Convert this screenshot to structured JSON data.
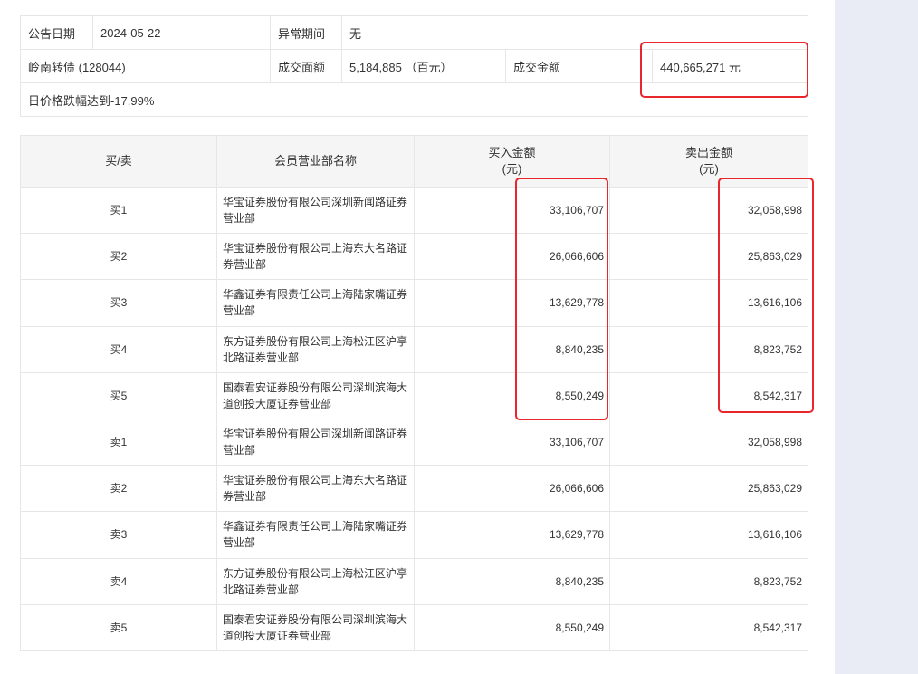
{
  "info": {
    "date_label": "公告日期",
    "date": "2024-05-22",
    "period_label": "异常期间",
    "period": "无",
    "bond": "岭南转债 (128044)",
    "face_label": "成交面额",
    "face": "5,184,885 （百元）",
    "amount_label": "成交金额",
    "amount": "440,665,271 元",
    "note": "日价格跌幅达到-17.99%"
  },
  "table": {
    "headers": [
      "买/卖",
      "会员营业部名称",
      "买入金额\n(元)",
      "卖出金额\n(元)"
    ],
    "rows": [
      {
        "side": "买1",
        "name": "华宝证券股份有限公司深圳新闻路证券营业部",
        "buy": "33,106,707",
        "sell": "32,058,998"
      },
      {
        "side": "买2",
        "name": "华宝证券股份有限公司上海东大名路证券营业部",
        "buy": "26,066,606",
        "sell": "25,863,029"
      },
      {
        "side": "买3",
        "name": "华鑫证券有限责任公司上海陆家嘴证券营业部",
        "buy": "13,629,778",
        "sell": "13,616,106"
      },
      {
        "side": "买4",
        "name": "东方证券股份有限公司上海松江区沪亭北路证券营业部",
        "buy": "8,840,235",
        "sell": "8,823,752"
      },
      {
        "side": "买5",
        "name": "国泰君安证券股份有限公司深圳滨海大道创投大厦证券营业部",
        "buy": "8,550,249",
        "sell": "8,542,317"
      },
      {
        "side": "卖1",
        "name": "华宝证券股份有限公司深圳新闻路证券营业部",
        "buy": "33,106,707",
        "sell": "32,058,998"
      },
      {
        "side": "卖2",
        "name": "华宝证券股份有限公司上海东大名路证券营业部",
        "buy": "26,066,606",
        "sell": "25,863,029"
      },
      {
        "side": "卖3",
        "name": "华鑫证券有限责任公司上海陆家嘴证券营业部",
        "buy": "13,629,778",
        "sell": "13,616,106"
      },
      {
        "side": "卖4",
        "name": "东方证券股份有限公司上海松江区沪亭北路证券营业部",
        "buy": "8,840,235",
        "sell": "8,823,752"
      },
      {
        "side": "卖5",
        "name": "国泰君安证券股份有限公司深圳滨海大道创投大厦证券营业部",
        "buy": "8,550,249",
        "sell": "8,542,317"
      }
    ]
  },
  "highlight_color": "#e8262b"
}
